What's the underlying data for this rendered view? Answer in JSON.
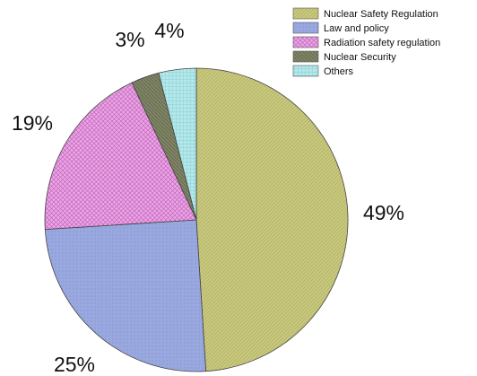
{
  "chart_data": {
    "type": "pie",
    "title": "",
    "legend_position": "top-right",
    "slices": [
      {
        "label": "Nuclear Safety Regulation",
        "value": 49,
        "value_label": "49%",
        "color": "#c8c87f"
      },
      {
        "label": "Law and policy",
        "value": 25,
        "value_label": "25%",
        "color": "#9aa8e0"
      },
      {
        "label": "Radiation safety regulation",
        "value": 19,
        "value_label": "19%",
        "color": "#e79ae0"
      },
      {
        "label": "Nuclear Security",
        "value": 3,
        "value_label": "3%",
        "color": "#7f8566"
      },
      {
        "label": "Others",
        "value": 4,
        "value_label": "4%",
        "color": "#a9e3e6"
      }
    ]
  }
}
